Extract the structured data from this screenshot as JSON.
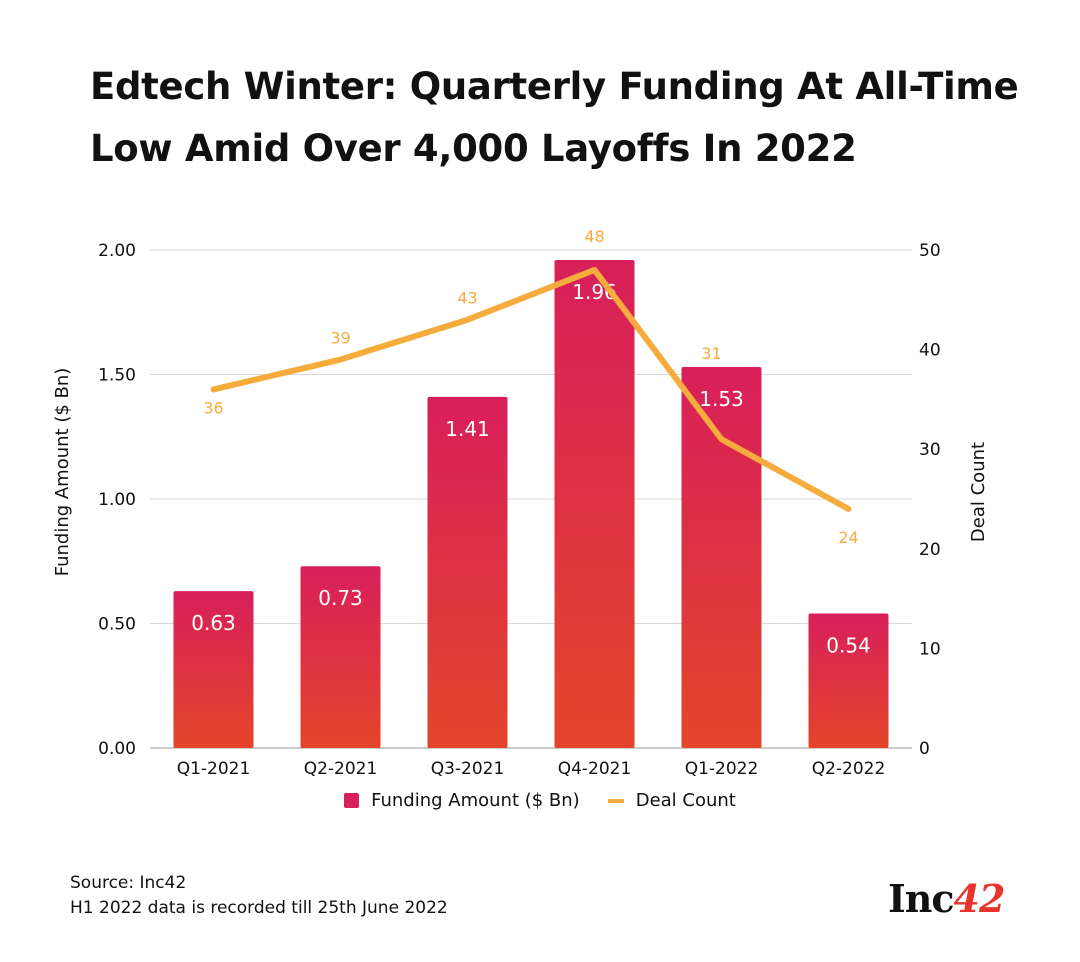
{
  "title": {
    "line1": "Edtech Winter: Quarterly Funding At All-Time",
    "line2": "Low Amid Over 4,000 Layoffs In 2022"
  },
  "colors": {
    "bar_top": "#d81f5a",
    "bar_bottom": "#e4452a",
    "line": "#f5ac3c",
    "grid": "#d9d9d9",
    "logo_accent": "#e8362f"
  },
  "chart_data": {
    "type": "bar",
    "categories": [
      "Q1-2021",
      "Q2-2021",
      "Q3-2021",
      "Q4-2021",
      "Q1-2022",
      "Q2-2022"
    ],
    "series": [
      {
        "name": "Funding Amount ($ Bn)",
        "type": "bar",
        "axis": "left",
        "values": [
          0.63,
          0.73,
          1.41,
          1.96,
          1.53,
          0.54
        ],
        "labels": [
          "0.63",
          "0.73",
          "1.41",
          "1.96",
          "1.53",
          "0.54"
        ]
      },
      {
        "name": "Deal Count",
        "type": "line",
        "axis": "right",
        "values": [
          36,
          39,
          43,
          48,
          31,
          24
        ],
        "labels": [
          "36",
          "39",
          "43",
          "48",
          "31",
          "24"
        ]
      }
    ],
    "ylabel": "Funding Amount ($ Bn)",
    "ylabel_right": "Deal Count",
    "xlabel": "",
    "ylim": [
      0,
      2
    ],
    "ylim_right": [
      0,
      50
    ],
    "yticks": [
      "0.00",
      "0.50",
      "1.00",
      "1.50",
      "2.00"
    ],
    "yticks_right": [
      "0",
      "10",
      "20",
      "30",
      "40",
      "50"
    ],
    "grid": true,
    "legend": "bottom-center"
  },
  "legend": {
    "bar_label": "Funding Amount ($ Bn)",
    "line_label": "Deal Count"
  },
  "footer": {
    "source": "Source: Inc42",
    "note": "H1 2022 data is recorded till 25th June 2022"
  },
  "logo": {
    "text": "Inc",
    "accent": "42"
  }
}
